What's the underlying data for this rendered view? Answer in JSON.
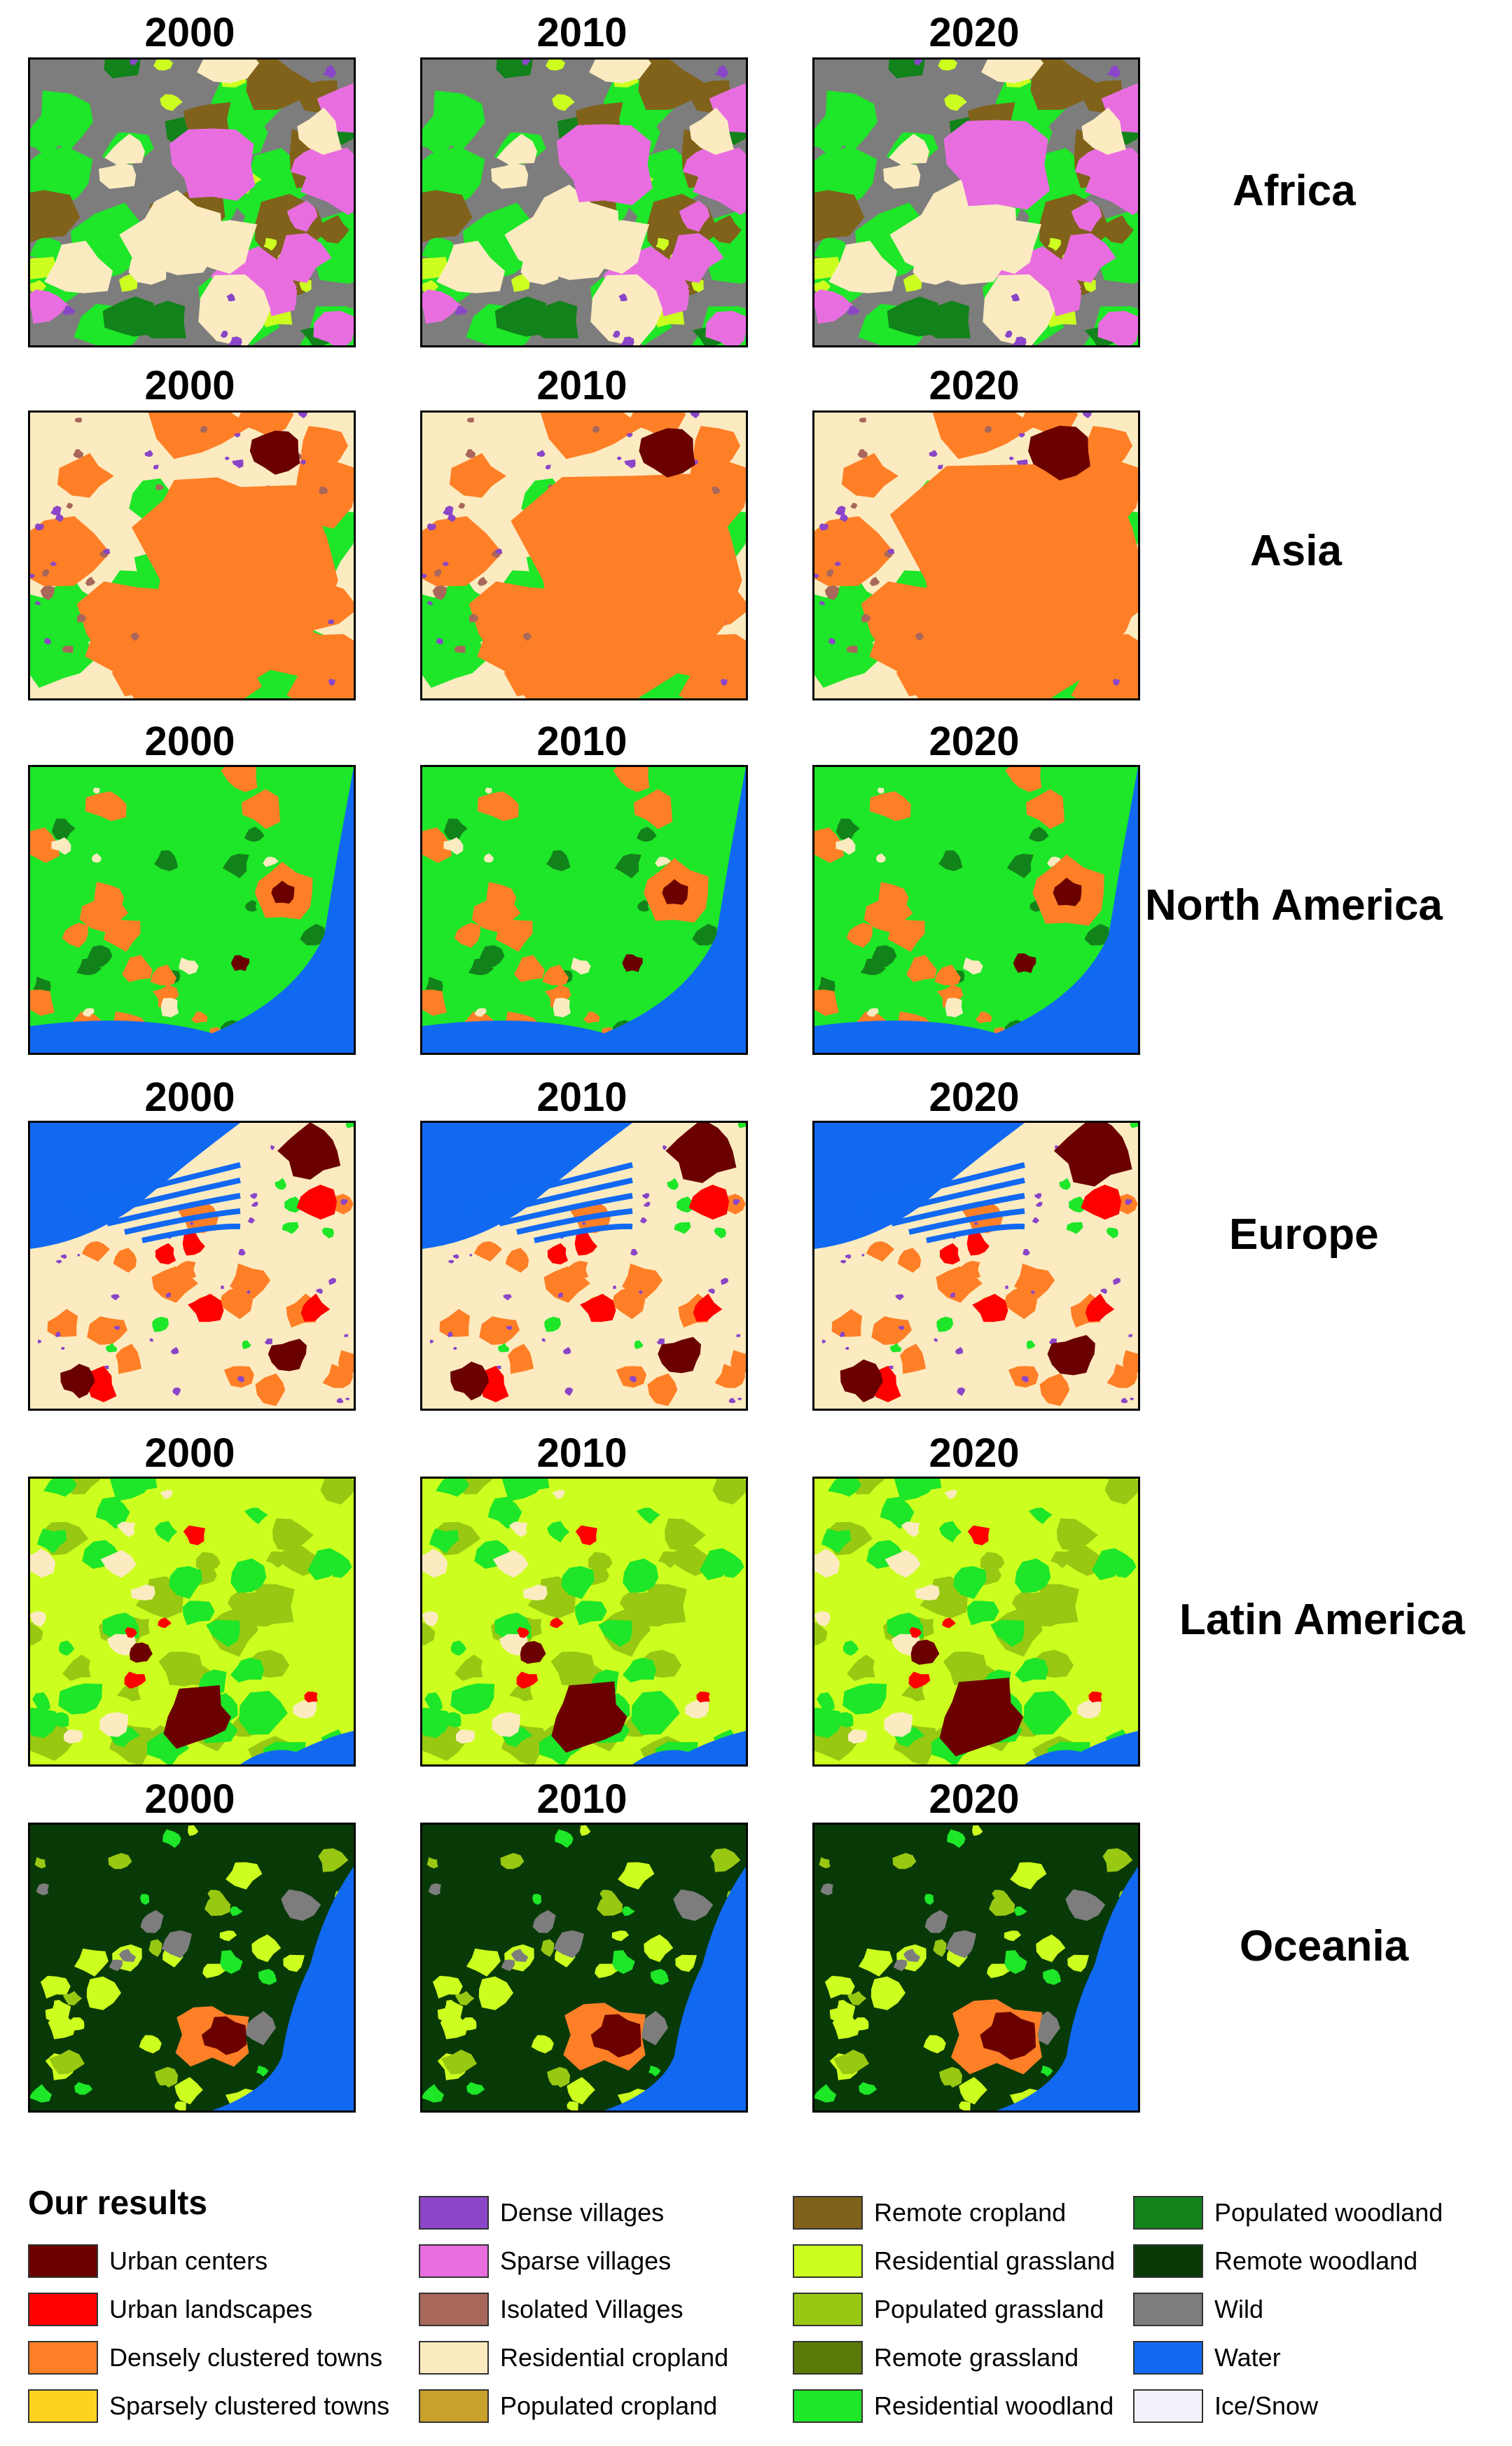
{
  "years": [
    "2000",
    "2010",
    "2020"
  ],
  "regions": [
    {
      "name": "Africa",
      "years": [
        "2000",
        "2010",
        "2020"
      ]
    },
    {
      "name": "Asia",
      "years": [
        "2000",
        "2010",
        "2020"
      ]
    },
    {
      "name": "North America",
      "years": [
        "2000",
        "2010",
        "2020"
      ]
    },
    {
      "name": "Europe",
      "years": [
        "2000",
        "2010",
        "2020"
      ]
    },
    {
      "name": "Latin America",
      "years": [
        "2000",
        "2010",
        "2020"
      ]
    },
    {
      "name": "Oceania",
      "years": [
        "2000",
        "2010",
        "2020"
      ]
    }
  ],
  "legend": {
    "title": "Our results",
    "items": [
      {
        "label": "Urban centers",
        "color": "#6b0000"
      },
      {
        "label": "Urban landscapes",
        "color": "#ff0000"
      },
      {
        "label": "Densely clustered towns",
        "color": "#ff7f27"
      },
      {
        "label": "Sparsely clustered towns",
        "color": "#ffd21f"
      },
      {
        "label": "Dense villages",
        "color": "#8a45c8"
      },
      {
        "label": "Sparse villages",
        "color": "#e86ee0"
      },
      {
        "label": "Isolated Villages",
        "color": "#a8675a"
      },
      {
        "label": "Residential cropland",
        "color": "#fcebc0"
      },
      {
        "label": "Populated cropland",
        "color": "#c8a02a"
      },
      {
        "label": "Remote cropland",
        "color": "#80621a"
      },
      {
        "label": "Residential grassland",
        "color": "#ccff1f"
      },
      {
        "label": "Populated grassland",
        "color": "#98c812"
      },
      {
        "label": "Remote grassland",
        "color": "#5a7a0a"
      },
      {
        "label": "Residential woodland",
        "color": "#1ee628"
      },
      {
        "label": "Populated woodland",
        "color": "#12821a"
      },
      {
        "label": "Remote woodland",
        "color": "#083a08"
      },
      {
        "label": "Wild",
        "color": "#7d7d7d"
      },
      {
        "label": "Water",
        "color": "#1169f2"
      },
      {
        "label": "Ice/Snow",
        "color": "#f2f2fa"
      }
    ]
  }
}
